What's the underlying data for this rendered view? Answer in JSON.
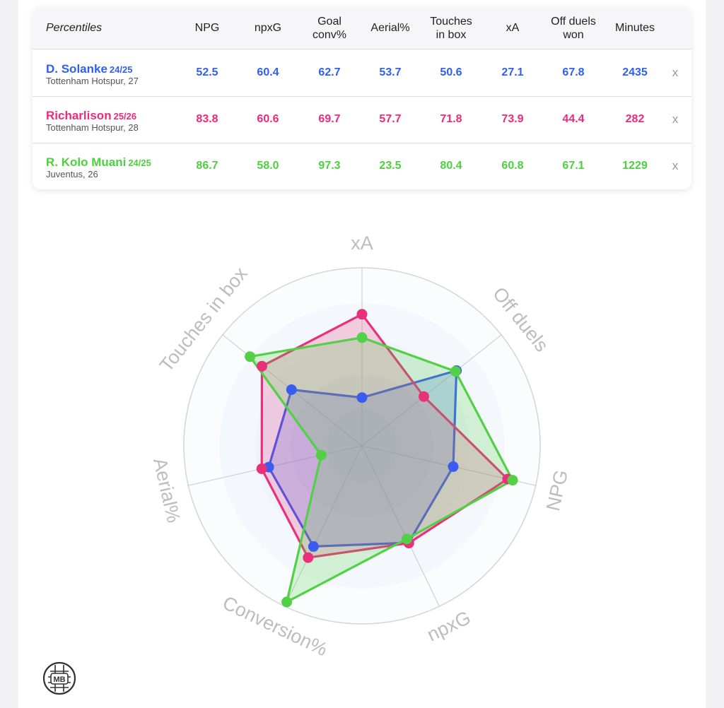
{
  "table": {
    "headers": [
      "Percentiles",
      "NPG",
      "npxG",
      "Goal\nconv%",
      "Aerial%",
      "Touches\nin box",
      "xA",
      "Off duels\nwon",
      "Minutes"
    ],
    "remove_label": "x",
    "players": [
      {
        "name": "D. Solanke",
        "season": "24/25",
        "club": "Tottenham Hotspur, 27",
        "color": "#2f5ff0",
        "values": [
          "52.5",
          "60.4",
          "62.7",
          "53.7",
          "50.6",
          "27.1",
          "67.8",
          "2435"
        ]
      },
      {
        "name": "Richarlison",
        "season": "25/26",
        "club": "Tottenham Hotspur, 28",
        "color": "#ea2a7c",
        "values": [
          "83.8",
          "60.6",
          "69.7",
          "57.7",
          "71.8",
          "73.9",
          "44.4",
          "282"
        ]
      },
      {
        "name": "R. Kolo Muani",
        "season": "24/25",
        "club": "Juventus, 26",
        "color": "#4ed03e",
        "values": [
          "86.7",
          "58.0",
          "97.3",
          "23.5",
          "80.4",
          "60.8",
          "67.1",
          "1229"
        ]
      }
    ]
  },
  "chart_data": {
    "type": "radar",
    "axes": [
      "xA",
      "Off duels",
      "NPG",
      "npxG",
      "Conversion%",
      "Aerial%",
      "Touches in box"
    ],
    "range": [
      0,
      100
    ],
    "series": [
      {
        "name": "D. Solanke",
        "color": "#3b5cf0",
        "values": [
          27.1,
          67.8,
          52.5,
          60.4,
          62.7,
          53.7,
          50.6
        ]
      },
      {
        "name": "Richarlison",
        "color": "#e8317a",
        "values": [
          73.9,
          44.4,
          83.8,
          60.6,
          69.7,
          57.7,
          71.8
        ]
      },
      {
        "name": "R. Kolo Muani",
        "color": "#52d046",
        "values": [
          60.8,
          67.1,
          86.7,
          58.0,
          97.3,
          23.5,
          80.4
        ]
      }
    ]
  },
  "logo_text": "MB"
}
